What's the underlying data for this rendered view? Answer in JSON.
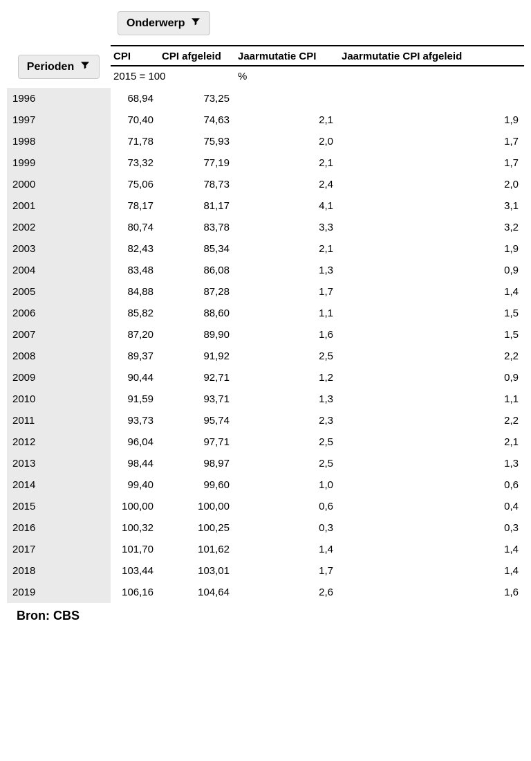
{
  "filters": {
    "onderwerp": "Onderwerp",
    "perioden": "Perioden"
  },
  "columns": {
    "cpi": "CPI",
    "cpi_afgeleid": "CPI afgeleid",
    "jaarmutatie_cpi": "Jaarmutatie CPI",
    "jaarmutatie_cpi_afgeleid": "Jaarmutatie CPI afgeleid"
  },
  "units": {
    "index_base": "2015 = 100",
    "pct": "%"
  },
  "rows": [
    {
      "year": "1996",
      "cpi": "68,94",
      "cpia": "73,25",
      "j": "",
      "ja": ""
    },
    {
      "year": "1997",
      "cpi": "70,40",
      "cpia": "74,63",
      "j": "2,1",
      "ja": "1,9"
    },
    {
      "year": "1998",
      "cpi": "71,78",
      "cpia": "75,93",
      "j": "2,0",
      "ja": "1,7"
    },
    {
      "year": "1999",
      "cpi": "73,32",
      "cpia": "77,19",
      "j": "2,1",
      "ja": "1,7"
    },
    {
      "year": "2000",
      "cpi": "75,06",
      "cpia": "78,73",
      "j": "2,4",
      "ja": "2,0"
    },
    {
      "year": "2001",
      "cpi": "78,17",
      "cpia": "81,17",
      "j": "4,1",
      "ja": "3,1"
    },
    {
      "year": "2002",
      "cpi": "80,74",
      "cpia": "83,78",
      "j": "3,3",
      "ja": "3,2"
    },
    {
      "year": "2003",
      "cpi": "82,43",
      "cpia": "85,34",
      "j": "2,1",
      "ja": "1,9"
    },
    {
      "year": "2004",
      "cpi": "83,48",
      "cpia": "86,08",
      "j": "1,3",
      "ja": "0,9"
    },
    {
      "year": "2005",
      "cpi": "84,88",
      "cpia": "87,28",
      "j": "1,7",
      "ja": "1,4"
    },
    {
      "year": "2006",
      "cpi": "85,82",
      "cpia": "88,60",
      "j": "1,1",
      "ja": "1,5"
    },
    {
      "year": "2007",
      "cpi": "87,20",
      "cpia": "89,90",
      "j": "1,6",
      "ja": "1,5"
    },
    {
      "year": "2008",
      "cpi": "89,37",
      "cpia": "91,92",
      "j": "2,5",
      "ja": "2,2"
    },
    {
      "year": "2009",
      "cpi": "90,44",
      "cpia": "92,71",
      "j": "1,2",
      "ja": "0,9"
    },
    {
      "year": "2010",
      "cpi": "91,59",
      "cpia": "93,71",
      "j": "1,3",
      "ja": "1,1"
    },
    {
      "year": "2011",
      "cpi": "93,73",
      "cpia": "95,74",
      "j": "2,3",
      "ja": "2,2"
    },
    {
      "year": "2012",
      "cpi": "96,04",
      "cpia": "97,71",
      "j": "2,5",
      "ja": "2,1"
    },
    {
      "year": "2013",
      "cpi": "98,44",
      "cpia": "98,97",
      "j": "2,5",
      "ja": "1,3"
    },
    {
      "year": "2014",
      "cpi": "99,40",
      "cpia": "99,60",
      "j": "1,0",
      "ja": "0,6"
    },
    {
      "year": "2015",
      "cpi": "100,00",
      "cpia": "100,00",
      "j": "0,6",
      "ja": "0,4"
    },
    {
      "year": "2016",
      "cpi": "100,32",
      "cpia": "100,25",
      "j": "0,3",
      "ja": "0,3"
    },
    {
      "year": "2017",
      "cpi": "101,70",
      "cpia": "101,62",
      "j": "1,4",
      "ja": "1,4"
    },
    {
      "year": "2018",
      "cpi": "103,44",
      "cpia": "103,01",
      "j": "1,7",
      "ja": "1,4"
    },
    {
      "year": "2019",
      "cpi": "106,16",
      "cpia": "104,64",
      "j": "2,6",
      "ja": "1,6"
    }
  ],
  "source": "Bron: CBS"
}
